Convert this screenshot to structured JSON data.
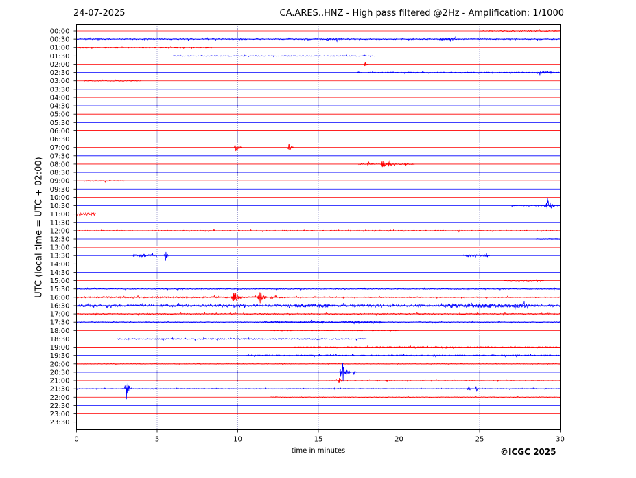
{
  "header": {
    "date": "24-07-2025",
    "title": "CA.ARES..HNZ - High pass filtered @2Hz - Amplification: 1/1000"
  },
  "copyright": "©ICGC 2025",
  "chart_data": {
    "type": "line",
    "title": "CA.ARES..HNZ - High pass filtered @2Hz - Amplification: 1/1000",
    "xlabel": "time in minutes",
    "ylabel": "UTC (local time = UTC + 02:00)",
    "xlim": [
      0,
      30
    ],
    "x_ticks": [
      0,
      5,
      10,
      15,
      20,
      25,
      30
    ],
    "grid": "vertical dotted lines every 5 minutes",
    "colors": {
      "odd_trace": "#ff0000",
      "even_trace": "#0000ff",
      "grid": "#000080"
    },
    "rows": [
      "00:00",
      "00:30",
      "01:00",
      "01:30",
      "02:00",
      "02:30",
      "03:00",
      "03:30",
      "04:00",
      "04:30",
      "05:00",
      "05:30",
      "06:00",
      "06:30",
      "07:00",
      "07:30",
      "08:00",
      "08:30",
      "09:00",
      "09:30",
      "10:00",
      "10:30",
      "11:00",
      "11:30",
      "12:00",
      "12:30",
      "13:00",
      "13:30",
      "14:00",
      "14:30",
      "15:00",
      "15:30",
      "16:00",
      "16:30",
      "17:00",
      "17:30",
      "18:00",
      "18:30",
      "19:00",
      "19:30",
      "20:00",
      "20:30",
      "21:00",
      "21:30",
      "22:00",
      "22:30",
      "23:00",
      "23:30"
    ],
    "noise_segments": [
      {
        "row": "00:00",
        "x0": 25.0,
        "x1": 30.0,
        "amp": 0.15
      },
      {
        "row": "00:30",
        "x0": 0.0,
        "x1": 30.0,
        "amp": 0.15
      },
      {
        "row": "00:30",
        "x0": 15.5,
        "x1": 16.5,
        "amp": 0.3
      },
      {
        "row": "00:30",
        "x0": 22.5,
        "x1": 23.5,
        "amp": 0.3
      },
      {
        "row": "01:00",
        "x0": 0.0,
        "x1": 8.5,
        "amp": 0.12
      },
      {
        "row": "01:30",
        "x0": 6.0,
        "x1": 18.5,
        "amp": 0.1
      },
      {
        "row": "02:30",
        "x0": 18.0,
        "x1": 30.0,
        "amp": 0.12
      },
      {
        "row": "02:30",
        "x0": 28.5,
        "x1": 29.5,
        "amp": 0.3
      },
      {
        "row": "03:00",
        "x0": 0.5,
        "x1": 4.0,
        "amp": 0.12
      },
      {
        "row": "08:00",
        "x0": 17.5,
        "x1": 21.0,
        "amp": 0.15
      },
      {
        "row": "09:00",
        "x0": 0.5,
        "x1": 3.0,
        "amp": 0.15
      },
      {
        "row": "10:30",
        "x0": 27.0,
        "x1": 30.0,
        "amp": 0.15
      },
      {
        "row": "11:00",
        "x0": 0.0,
        "x1": 1.2,
        "amp": 0.4
      },
      {
        "row": "12:00",
        "x0": 0.0,
        "x1": 30.0,
        "amp": 0.12
      },
      {
        "row": "12:30",
        "x0": 28.5,
        "x1": 30.0,
        "amp": 0.1
      },
      {
        "row": "13:30",
        "x0": 3.5,
        "x1": 5.0,
        "amp": 0.3
      },
      {
        "row": "13:30",
        "x0": 24.0,
        "x1": 25.5,
        "amp": 0.25
      },
      {
        "row": "15:00",
        "x0": 26.5,
        "x1": 29.0,
        "amp": 0.12
      },
      {
        "row": "15:30",
        "x0": 0.0,
        "x1": 30.0,
        "amp": 0.12
      },
      {
        "row": "16:00",
        "x0": 0.0,
        "x1": 13.0,
        "amp": 0.2
      },
      {
        "row": "16:00",
        "x0": 13.0,
        "x1": 30.0,
        "amp": 0.12
      },
      {
        "row": "16:30",
        "x0": 0.0,
        "x1": 30.0,
        "amp": 0.3
      },
      {
        "row": "16:30",
        "x0": 13.5,
        "x1": 16.0,
        "amp": 0.45
      },
      {
        "row": "16:30",
        "x0": 23.0,
        "x1": 28.0,
        "amp": 0.5
      },
      {
        "row": "17:00",
        "x0": 0.0,
        "x1": 30.0,
        "amp": 0.15
      },
      {
        "row": "17:30",
        "x0": 0.0,
        "x1": 30.0,
        "amp": 0.12
      },
      {
        "row": "17:30",
        "x0": 11.5,
        "x1": 19.0,
        "amp": 0.25
      },
      {
        "row": "18:00",
        "x0": 12.0,
        "x1": 20.0,
        "amp": 0.08
      },
      {
        "row": "18:30",
        "x0": 2.5,
        "x1": 18.0,
        "amp": 0.15
      },
      {
        "row": "19:00",
        "x0": 13.5,
        "x1": 30.0,
        "amp": 0.15
      },
      {
        "row": "19:30",
        "x0": 10.5,
        "x1": 30.0,
        "amp": 0.15
      },
      {
        "row": "20:00",
        "x0": 0.0,
        "x1": 30.0,
        "amp": 0.08
      },
      {
        "row": "21:00",
        "x0": 15.5,
        "x1": 30.0,
        "amp": 0.1
      },
      {
        "row": "21:30",
        "x0": 0.0,
        "x1": 30.0,
        "amp": 0.1
      },
      {
        "row": "22:00",
        "x0": 12.0,
        "x1": 30.0,
        "amp": 0.08
      }
    ],
    "events": [
      {
        "row": "02:00",
        "x": 17.9,
        "amp": 0.35,
        "width": 0.05
      },
      {
        "row": "02:30",
        "x": 17.5,
        "amp": 0.2,
        "width": 0.05
      },
      {
        "row": "07:00",
        "x": 9.9,
        "amp": 0.6,
        "width": 0.15
      },
      {
        "row": "07:00",
        "x": 13.2,
        "amp": 0.7,
        "width": 0.12
      },
      {
        "row": "08:00",
        "x": 18.1,
        "amp": 0.35,
        "width": 0.1
      },
      {
        "row": "08:00",
        "x": 19.0,
        "amp": 0.7,
        "width": 0.12
      },
      {
        "row": "08:00",
        "x": 19.4,
        "amp": 0.6,
        "width": 0.12
      },
      {
        "row": "08:00",
        "x": 20.4,
        "amp": 0.25,
        "width": 0.08
      },
      {
        "row": "10:30",
        "x": 29.2,
        "amp": 1.2,
        "width": 0.2
      },
      {
        "row": "13:30",
        "x": 4.1,
        "amp": 0.4,
        "width": 0.15
      },
      {
        "row": "13:30",
        "x": 5.5,
        "amp": 0.8,
        "width": 0.1
      },
      {
        "row": "13:30",
        "x": 25.4,
        "amp": 0.4,
        "width": 0.1
      },
      {
        "row": "16:00",
        "x": 9.8,
        "amp": 1.0,
        "width": 0.2
      },
      {
        "row": "16:00",
        "x": 11.4,
        "amp": 0.8,
        "width": 0.2
      },
      {
        "row": "20:30",
        "x": 16.5,
        "amp": 1.4,
        "width": 0.2
      },
      {
        "row": "20:30",
        "x": 17.2,
        "amp": 0.3,
        "width": 0.05
      },
      {
        "row": "21:00",
        "x": 16.3,
        "amp": 0.35,
        "width": 0.1
      },
      {
        "row": "21:30",
        "x": 3.1,
        "amp": 1.3,
        "width": 0.15
      },
      {
        "row": "21:30",
        "x": 24.3,
        "amp": 0.4,
        "width": 0.1
      },
      {
        "row": "21:30",
        "x": 24.8,
        "amp": 0.45,
        "width": 0.05
      }
    ]
  }
}
